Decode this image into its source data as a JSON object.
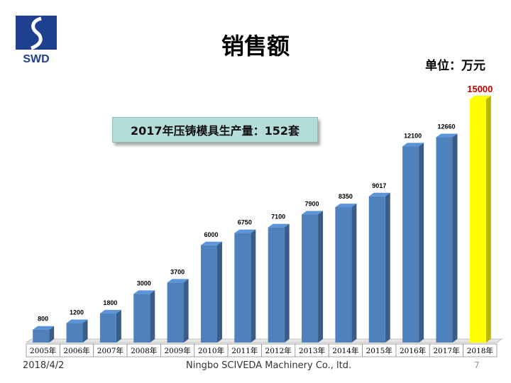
{
  "slide": {
    "title": "销售额",
    "unit_label": "单位：万元",
    "callout": "2017年压铸模具生产量：152套",
    "logo_text": "SWD",
    "footer_date": "2018/4/2",
    "footer_company": "Ningbo SCIVEDA  Machinery Co., ltd.",
    "page_number": "7"
  },
  "colors": {
    "bar": "#4f81bd",
    "bar_highlight": "#ffff00",
    "highlight_label": "#c00000",
    "logo": "#1f3f8f"
  },
  "chart_data": {
    "type": "bar",
    "categories": [
      "2005年",
      "2006年",
      "2007年",
      "2008年",
      "2009年",
      "2010年",
      "2011年",
      "2012年",
      "2013年",
      "2014年",
      "2015年",
      "2016年",
      "2017年",
      "2018年"
    ],
    "values": [
      800,
      1200,
      1800,
      3000,
      3700,
      6000,
      6750,
      7100,
      7900,
      8350,
      9017,
      12100,
      12660,
      15000
    ],
    "highlight_index": 13,
    "ylim": [
      0,
      15000
    ],
    "grid": false,
    "legend": "none"
  }
}
